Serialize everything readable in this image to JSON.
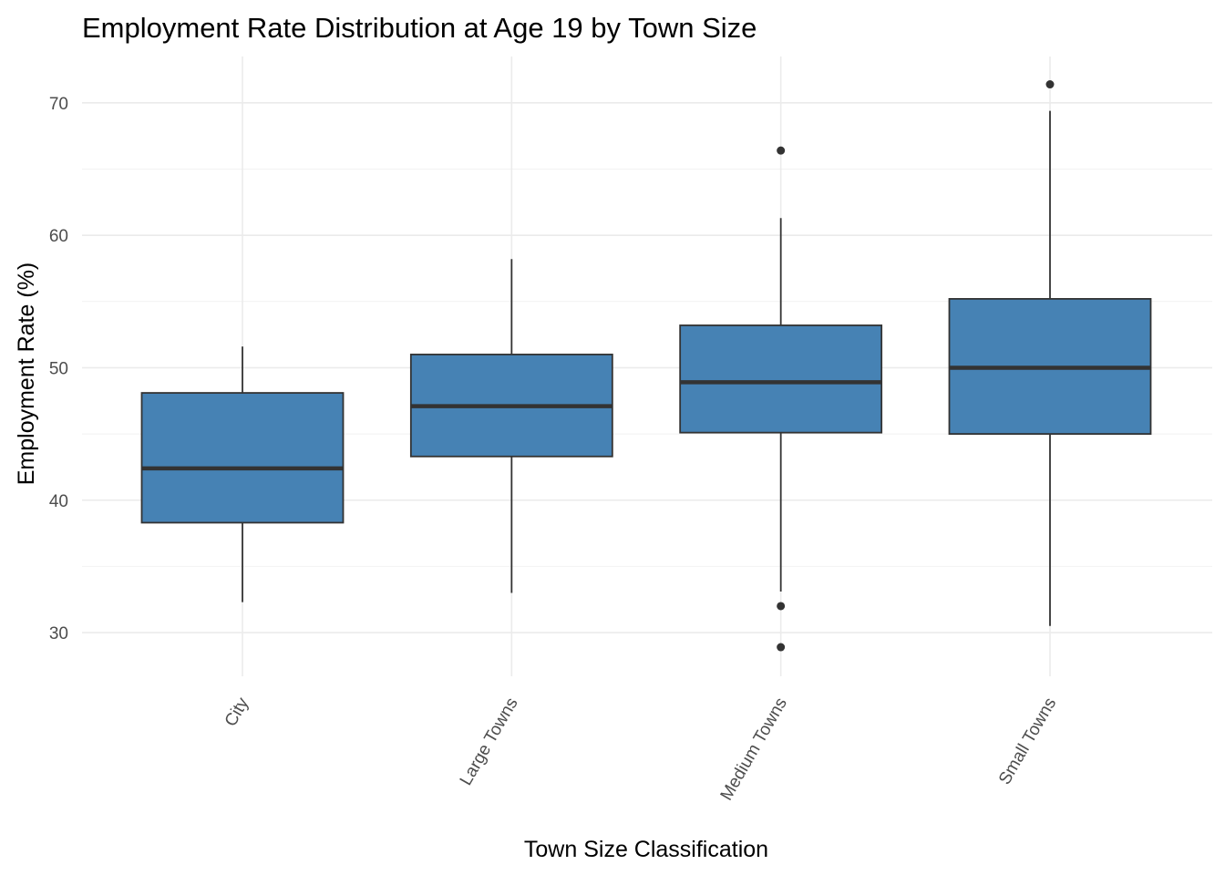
{
  "chart_data": {
    "type": "boxplot",
    "title": "Employment Rate Distribution at Age 19 by Town Size",
    "xlabel": "Town Size Classification",
    "ylabel": "Employment Rate (%)",
    "categories": [
      "City",
      "Large Towns",
      "Medium Towns",
      "Small Towns"
    ],
    "yticks": [
      30,
      40,
      50,
      60,
      70
    ],
    "ylim": [
      26.7,
      73.5
    ],
    "grid": true,
    "legend": "none",
    "fill_color": "#4682b4",
    "stroke_color": "#333333",
    "boxes": [
      {
        "category": "City",
        "whisker_low": 32.3,
        "q1": 38.3,
        "median": 42.4,
        "q3": 48.1,
        "whisker_high": 51.6,
        "outliers": []
      },
      {
        "category": "Large Towns",
        "whisker_low": 33.0,
        "q1": 43.3,
        "median": 47.1,
        "q3": 51.0,
        "whisker_high": 58.2,
        "outliers": []
      },
      {
        "category": "Medium Towns",
        "whisker_low": 33.1,
        "q1": 45.1,
        "median": 48.9,
        "q3": 53.2,
        "whisker_high": 61.3,
        "outliers": [
          66.4,
          32.0,
          28.9
        ]
      },
      {
        "category": "Small Towns",
        "whisker_low": 30.5,
        "q1": 45.0,
        "median": 50.0,
        "q3": 55.2,
        "whisker_high": 69.4,
        "outliers": [
          71.4
        ]
      }
    ]
  }
}
